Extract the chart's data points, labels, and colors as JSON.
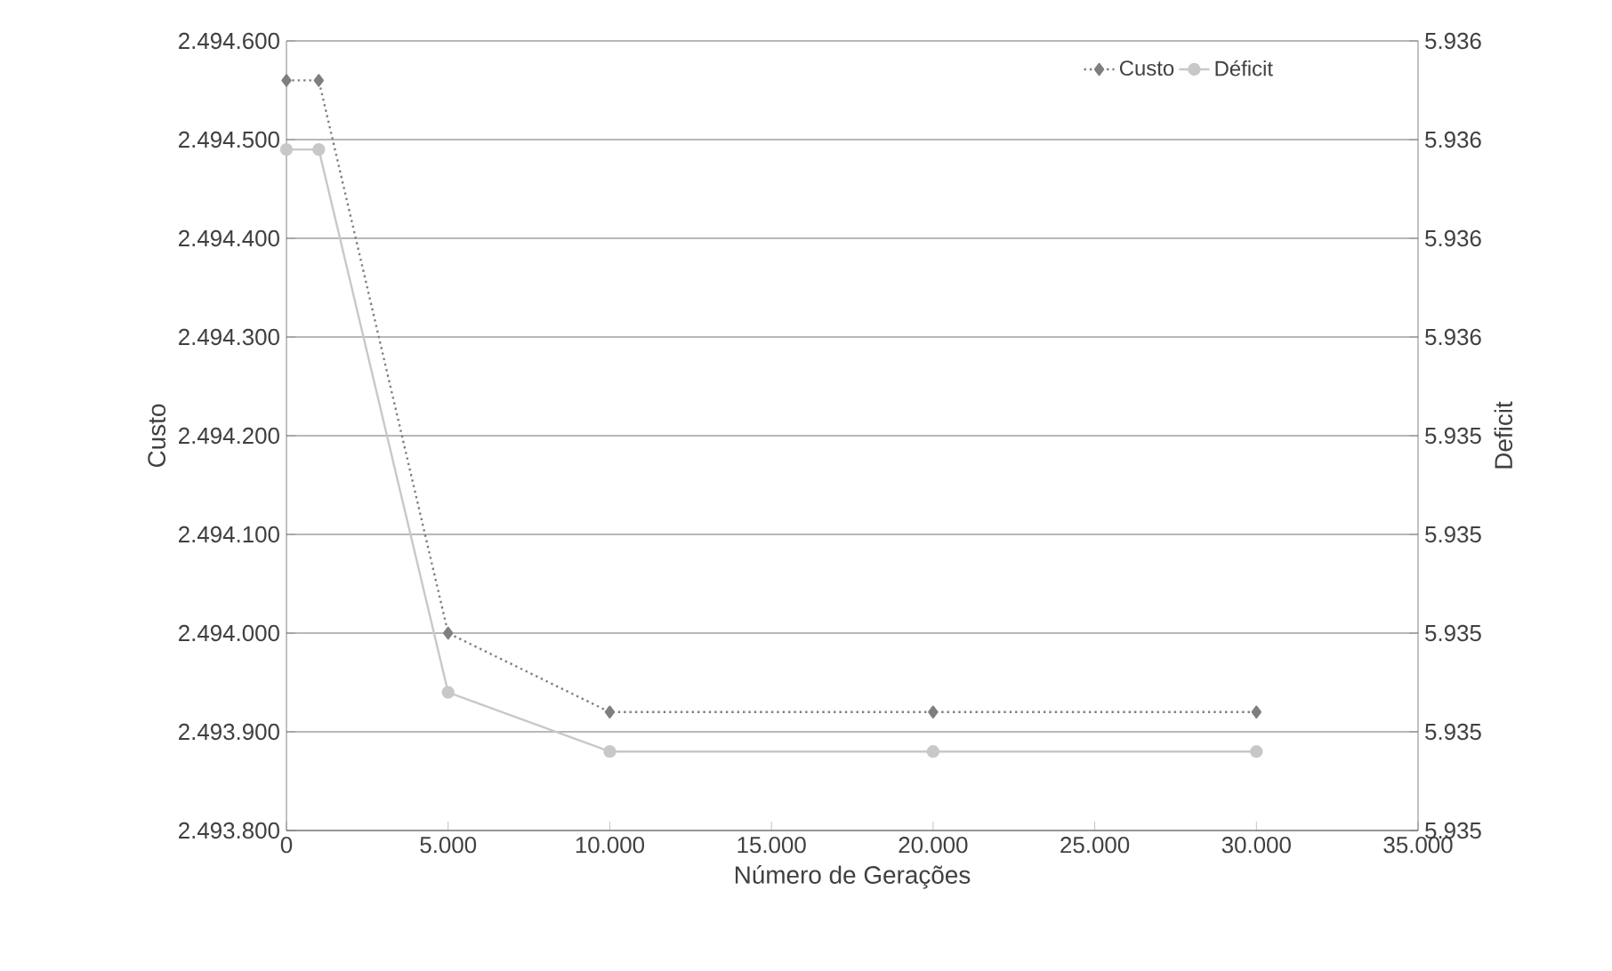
{
  "chart_data": {
    "type": "line",
    "xlabel": "Número de Gerações",
    "ylabel": "Custo",
    "y2label": "Deficit",
    "x": [
      0,
      1000,
      5000,
      10000,
      20000,
      30000
    ],
    "series": [
      {
        "name": "Custo",
        "color": "#7f7f7f",
        "marker": "diamond",
        "line_style": "dotted",
        "values": [
          2494560,
          2494560,
          2494000,
          2493920,
          2493920,
          2493920
        ]
      },
      {
        "name": "Déficit",
        "color": "#c8c8c8",
        "marker": "circle",
        "line_style": "solid",
        "axis": "y2",
        "values": [
          5935.69,
          5935.69,
          5935.14,
          5935.08,
          5935.08,
          5935.08
        ]
      }
    ],
    "xlim": [
      0,
      35000
    ],
    "xticks": [
      0,
      {
        "value": 5000,
        "label": "5.000"
      },
      {
        "value": 10000,
        "label": "10.000"
      },
      {
        "value": 15000,
        "label": "15.000"
      },
      {
        "value": 20000,
        "label": "20.000"
      },
      {
        "value": 25000,
        "label": "25.000"
      },
      {
        "value": 30000,
        "label": "30.000"
      },
      {
        "value": 35000,
        "label": "35.000"
      }
    ],
    "ylim": [
      2493800,
      2494600
    ],
    "yticks": [
      {
        "value": 2493800,
        "label": "2.493.800"
      },
      {
        "value": 2493900,
        "label": "2.493.900"
      },
      {
        "value": 2494000,
        "label": "2.494.000"
      },
      {
        "value": 2494100,
        "label": "2.494.100"
      },
      {
        "value": 2494200,
        "label": "2.494.200"
      },
      {
        "value": 2494300,
        "label": "2.494.300"
      },
      {
        "value": 2494400,
        "label": "2.494.400"
      },
      {
        "value": 2494500,
        "label": "2.494.500"
      },
      {
        "value": 2494600,
        "label": "2.494.600"
      }
    ],
    "y2lim": [
      5935.0,
      5935.8
    ],
    "y2ticks": [
      {
        "value": 5935.0,
        "label": "5.935"
      },
      {
        "value": 5935.1,
        "label": "5.935"
      },
      {
        "value": 5935.2,
        "label": "5.935"
      },
      {
        "value": 5935.3,
        "label": "5.935"
      },
      {
        "value": 5935.4,
        "label": "5.935"
      },
      {
        "value": 5935.5,
        "label": "5.936"
      },
      {
        "value": 5935.6,
        "label": "5.936"
      },
      {
        "value": 5935.7,
        "label": "5.936"
      },
      {
        "value": 5935.8,
        "label": "5.936"
      }
    ],
    "grid": "y",
    "legend": "top right"
  }
}
